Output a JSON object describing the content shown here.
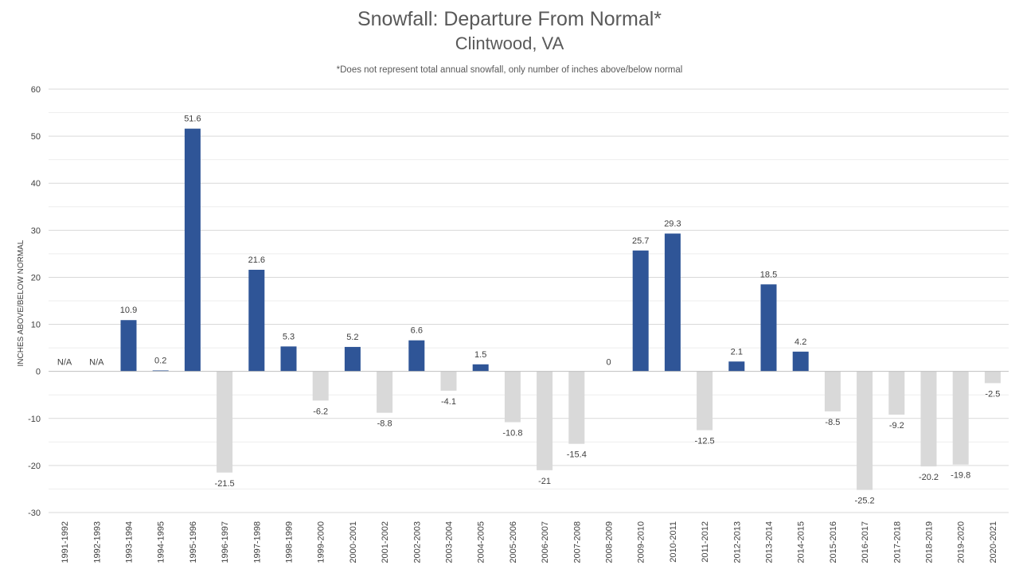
{
  "chart_data": {
    "type": "bar",
    "title": "Snowfall: Departure From Normal*",
    "subtitle": "Clintwood, VA",
    "note": "*Does not represent  total annual snowfall, only number of inches above/below normal",
    "ylabel": "INCHES ABOVE/BELOW NORMAL",
    "xlabel": "",
    "ylim": [
      -30,
      60
    ],
    "yticks": [
      -30,
      -20,
      -10,
      0,
      10,
      20,
      30,
      40,
      50,
      60
    ],
    "grid": true,
    "legend": "none",
    "colors": {
      "positive": "#2f5597",
      "negative": "#d9d9d9",
      "gridline": "#d9d9d9",
      "axis": "#bfbfbf"
    },
    "categories": [
      "1991-1992",
      "1992-1993",
      "1993-1994",
      "1994-1995",
      "1995-1996",
      "1996-1997",
      "1997-1998",
      "1998-1999",
      "1999-2000",
      "2000-2001",
      "2001-2002",
      "2002-2003",
      "2003-2004",
      "2004-2005",
      "2005-2006",
      "2006-2007",
      "2007-2008",
      "2008-2009",
      "2009-2010",
      "2010-2011",
      "2011-2012",
      "2012-2013",
      "2013-2014",
      "2014-2015",
      "2015-2016",
      "2016-2017",
      "2017-2018",
      "2018-2019",
      "2019-2020",
      "2020-2021"
    ],
    "values": [
      null,
      null,
      10.9,
      0.2,
      51.6,
      -21.5,
      21.6,
      5.3,
      -6.2,
      5.2,
      -8.8,
      6.6,
      -4.1,
      1.5,
      -10.8,
      -21,
      -15.4,
      0,
      25.7,
      29.3,
      -12.5,
      2.1,
      18.5,
      4.2,
      -8.5,
      -25.2,
      -9.2,
      -20.2,
      -19.8,
      -2.5
    ],
    "data_labels": [
      "N/A",
      "N/A",
      "10.9",
      "0.2",
      "51.6",
      "-21.5",
      "21.6",
      "5.3",
      "-6.2",
      "5.2",
      "-8.8",
      "6.6",
      "-4.1",
      "1.5",
      "-10.8",
      "-21",
      "-15.4",
      "0",
      "25.7",
      "29.3",
      "-12.5",
      "2.1",
      "18.5",
      "4.2",
      "-8.5",
      "-25.2",
      "-9.2",
      "-20.2",
      "-19.8",
      "-2.5"
    ]
  }
}
